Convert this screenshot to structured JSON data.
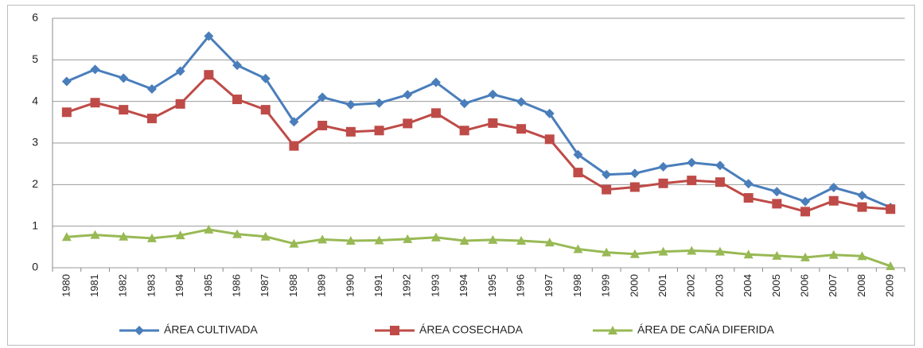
{
  "chart_data": {
    "type": "line",
    "categories": [
      "1980",
      "1981",
      "1982",
      "1983",
      "1984",
      "1985",
      "1986",
      "1987",
      "1988",
      "1989",
      "1990",
      "1991",
      "1992",
      "1993",
      "1994",
      "1995",
      "1996",
      "1997",
      "1998",
      "1999",
      "2000",
      "2001",
      "2002",
      "2003",
      "2004",
      "2005",
      "2006",
      "2007",
      "2008",
      "2009"
    ],
    "series": [
      {
        "name": "ÁREA CULTIVADA",
        "color": "#4a7ebb",
        "marker": "diamond",
        "values": [
          4.48,
          4.77,
          4.56,
          4.3,
          4.73,
          5.57,
          4.87,
          4.55,
          3.51,
          4.1,
          3.92,
          3.96,
          4.16,
          4.46,
          3.95,
          4.17,
          3.99,
          3.71,
          2.72,
          2.24,
          2.27,
          2.43,
          2.53,
          2.46,
          2.02,
          1.83,
          1.59,
          1.93,
          1.74,
          1.45
        ]
      },
      {
        "name": "ÁREA COSECHADA",
        "color": "#be4b48",
        "marker": "square",
        "values": [
          3.74,
          3.97,
          3.8,
          3.59,
          3.94,
          4.64,
          4.05,
          3.8,
          2.93,
          3.42,
          3.27,
          3.3,
          3.47,
          3.72,
          3.3,
          3.48,
          3.34,
          3.09,
          2.29,
          1.88,
          1.94,
          2.03,
          2.1,
          2.06,
          1.68,
          1.54,
          1.35,
          1.61,
          1.46,
          1.41
        ]
      },
      {
        "name": "ÁREA DE CAÑA DIFERIDA",
        "color": "#98b954",
        "marker": "triangle",
        "values": [
          0.74,
          0.79,
          0.75,
          0.71,
          0.78,
          0.92,
          0.81,
          0.75,
          0.58,
          0.68,
          0.65,
          0.66,
          0.69,
          0.73,
          0.65,
          0.67,
          0.65,
          0.61,
          0.45,
          0.37,
          0.33,
          0.39,
          0.41,
          0.39,
          0.32,
          0.29,
          0.25,
          0.31,
          0.28,
          0.04
        ]
      }
    ],
    "ylim": [
      0,
      6
    ],
    "yticks": [
      0,
      1,
      2,
      3,
      4,
      5,
      6
    ],
    "grid": true,
    "legend": "bottom"
  }
}
